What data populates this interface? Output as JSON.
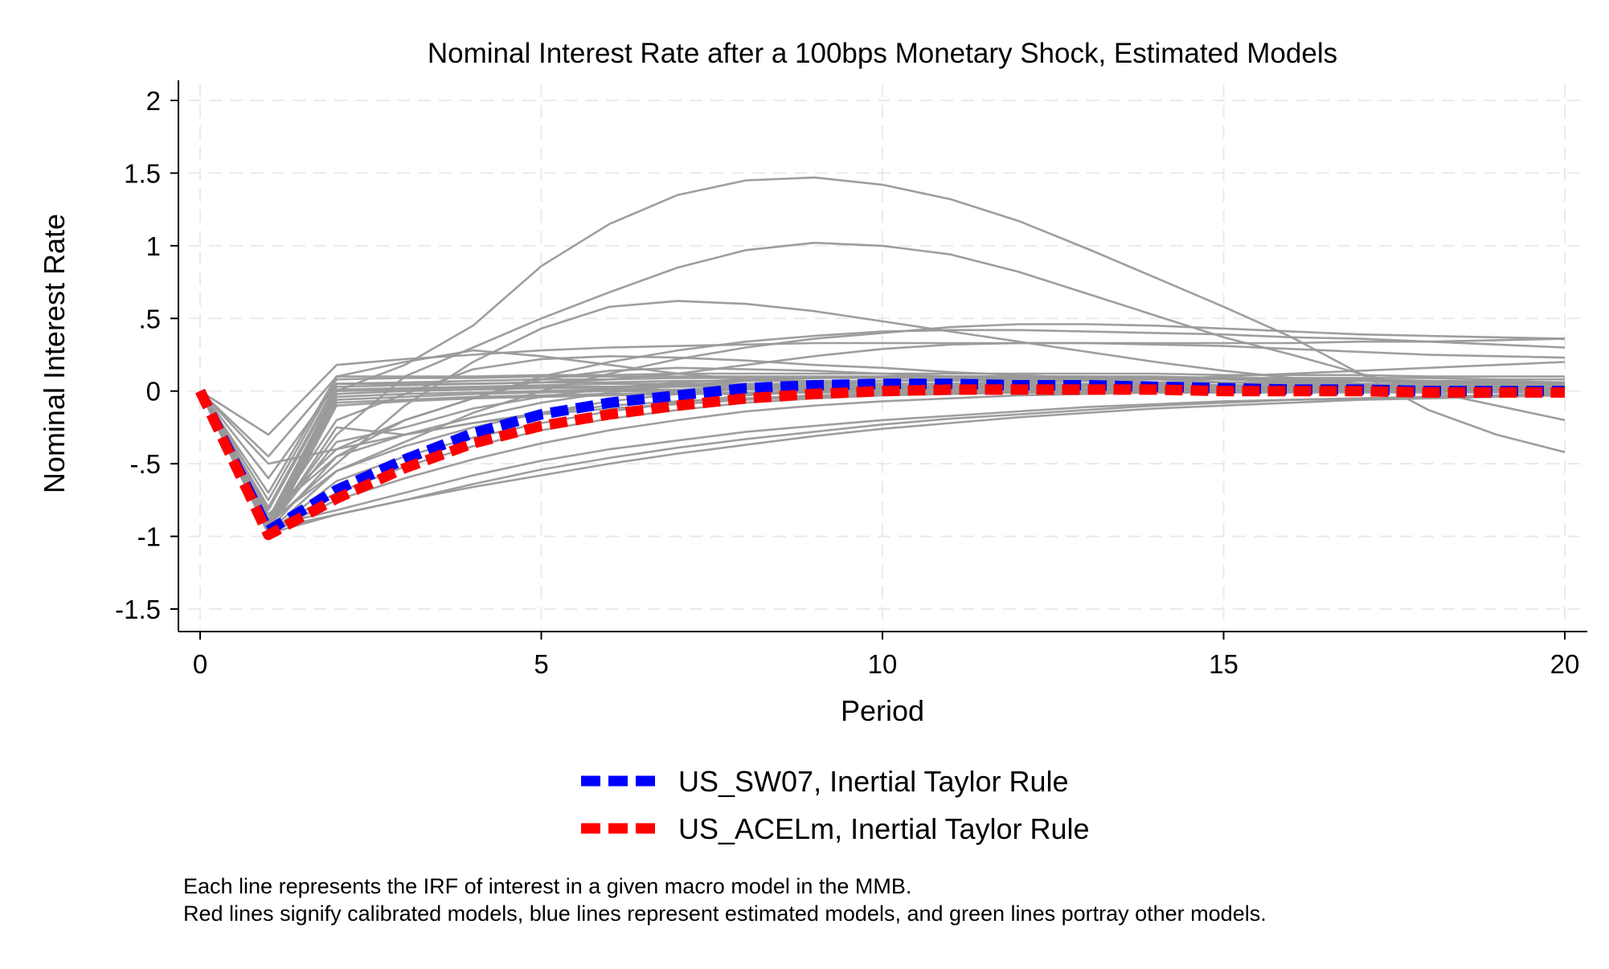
{
  "chart_data": {
    "type": "line",
    "title": "Nominal Interest Rate after a 100bps Monetary Shock, Estimated Models",
    "xlabel": "Period",
    "ylabel": "Nominal Interest Rate",
    "xlim": [
      0,
      20
    ],
    "ylim": [
      -1.5,
      2
    ],
    "x_ticks": [
      0,
      5,
      10,
      15,
      20
    ],
    "x_tick_labels": [
      "0",
      "5",
      "10",
      "15",
      "20"
    ],
    "y_ticks": [
      -1.5,
      -1,
      -0.5,
      0,
      0.5,
      1,
      1.5,
      2
    ],
    "y_tick_labels": [
      "-1.5",
      "-1",
      "-.5",
      "0",
      ".5",
      "1",
      "1.5",
      "2"
    ],
    "grid": true,
    "legend_position": "bottom",
    "x": [
      0,
      1,
      2,
      3,
      4,
      5,
      6,
      7,
      8,
      9,
      10,
      11,
      12,
      13,
      14,
      15,
      16,
      17,
      18,
      19,
      20
    ],
    "background_series_color": "#999999",
    "background_series": [
      [
        0,
        -0.95,
        0.0,
        0.18,
        0.45,
        0.86,
        1.15,
        1.35,
        1.45,
        1.47,
        1.42,
        1.32,
        1.17,
        0.98,
        0.78,
        0.58,
        0.37,
        0.12,
        -0.13,
        -0.3,
        -0.42
      ],
      [
        0,
        -0.93,
        -0.3,
        0.1,
        0.3,
        0.5,
        0.68,
        0.85,
        0.97,
        1.02,
        1.0,
        0.94,
        0.82,
        0.67,
        0.52,
        0.37,
        0.25,
        0.12,
        0.0,
        -0.1,
        -0.2
      ],
      [
        0,
        -0.92,
        -0.5,
        -0.1,
        0.2,
        0.43,
        0.58,
        0.62,
        0.6,
        0.55,
        0.48,
        0.41,
        0.34,
        0.27,
        0.2,
        0.14,
        0.09,
        0.05,
        0.02,
        0.0,
        -0.02
      ],
      [
        0,
        -0.3,
        0.18,
        0.22,
        0.25,
        0.28,
        0.3,
        0.31,
        0.32,
        0.33,
        0.33,
        0.33,
        0.33,
        0.33,
        0.33,
        0.33,
        0.33,
        0.34,
        0.34,
        0.35,
        0.36
      ],
      [
        0,
        -0.45,
        0.1,
        0.2,
        0.28,
        0.24,
        0.18,
        0.12,
        0.08,
        0.06,
        0.05,
        0.05,
        0.06,
        0.07,
        0.08,
        0.1,
        0.12,
        0.14,
        0.16,
        0.18,
        0.2
      ],
      [
        0,
        -0.6,
        0.05,
        0.05,
        0.05,
        0.06,
        0.08,
        0.12,
        0.18,
        0.24,
        0.29,
        0.32,
        0.33,
        0.33,
        0.32,
        0.31,
        0.29,
        0.27,
        0.25,
        0.24,
        0.23
      ],
      [
        0,
        -0.85,
        -0.4,
        -0.2,
        -0.05,
        0.1,
        0.2,
        0.28,
        0.34,
        0.38,
        0.41,
        0.42,
        0.42,
        0.41,
        0.4,
        0.39,
        0.37,
        0.36,
        0.34,
        0.32,
        0.3
      ],
      [
        0,
        -0.9,
        -0.55,
        -0.35,
        -0.15,
        0.0,
        0.12,
        0.22,
        0.3,
        0.36,
        0.4,
        0.44,
        0.46,
        0.46,
        0.45,
        0.43,
        0.41,
        0.39,
        0.38,
        0.37,
        0.36
      ],
      [
        0,
        -0.7,
        0.1,
        0.1,
        0.1,
        0.11,
        0.11,
        0.12,
        0.12,
        0.12,
        0.12,
        0.12,
        0.12,
        0.12,
        0.12,
        0.11,
        0.11,
        0.11,
        0.1,
        0.1,
        0.1
      ],
      [
        0,
        -0.75,
        0.08,
        0.09,
        0.09,
        0.1,
        0.1,
        0.1,
        0.1,
        0.1,
        0.1,
        0.1,
        0.1,
        0.1,
        0.1,
        0.09,
        0.09,
        0.09,
        0.09,
        0.08,
        0.08
      ],
      [
        0,
        -0.8,
        0.05,
        0.06,
        0.07,
        0.08,
        0.08,
        0.09,
        0.09,
        0.09,
        0.09,
        0.09,
        0.09,
        0.08,
        0.08,
        0.08,
        0.07,
        0.07,
        0.07,
        0.06,
        0.06
      ],
      [
        0,
        -0.82,
        0.03,
        0.04,
        0.05,
        0.06,
        0.06,
        0.07,
        0.07,
        0.07,
        0.07,
        0.07,
        0.07,
        0.07,
        0.06,
        0.06,
        0.06,
        0.05,
        0.05,
        0.05,
        0.05
      ],
      [
        0,
        -0.88,
        0.01,
        0.02,
        0.03,
        0.04,
        0.05,
        0.05,
        0.05,
        0.05,
        0.05,
        0.05,
        0.05,
        0.05,
        0.05,
        0.04,
        0.04,
        0.04,
        0.04,
        0.04,
        0.04
      ],
      [
        0,
        -0.9,
        0.0,
        0.01,
        0.02,
        0.03,
        0.03,
        0.04,
        0.04,
        0.04,
        0.04,
        0.04,
        0.04,
        0.04,
        0.03,
        0.03,
        0.03,
        0.03,
        0.03,
        0.03,
        0.03
      ],
      [
        0,
        -0.92,
        -0.02,
        0.0,
        0.01,
        0.02,
        0.02,
        0.03,
        0.03,
        0.03,
        0.03,
        0.03,
        0.03,
        0.03,
        0.02,
        0.02,
        0.02,
        0.02,
        0.02,
        0.02,
        0.02
      ],
      [
        0,
        -0.95,
        -0.04,
        -0.02,
        -0.01,
        0.0,
        0.01,
        0.01,
        0.02,
        0.02,
        0.02,
        0.02,
        0.02,
        0.02,
        0.02,
        0.01,
        0.01,
        0.01,
        0.01,
        0.01,
        0.01
      ],
      [
        0,
        -0.96,
        -0.06,
        -0.04,
        -0.02,
        -0.01,
        0.0,
        0.0,
        0.01,
        0.01,
        0.01,
        0.01,
        0.01,
        0.01,
        0.01,
        0.01,
        0.0,
        0.0,
        0.0,
        0.0,
        0.0
      ],
      [
        0,
        -0.97,
        -0.08,
        -0.06,
        -0.04,
        -0.03,
        -0.02,
        -0.01,
        -0.01,
        0.0,
        0.0,
        0.0,
        0.0,
        0.0,
        0.0,
        0.0,
        0.0,
        0.0,
        0.0,
        0.0,
        0.0
      ],
      [
        0,
        -0.98,
        -0.1,
        -0.07,
        -0.05,
        -0.04,
        -0.03,
        -0.02,
        -0.02,
        -0.01,
        -0.01,
        -0.01,
        -0.01,
        -0.01,
        -0.01,
        -0.01,
        -0.01,
        -0.01,
        -0.01,
        -0.01,
        -0.01
      ],
      [
        0,
        -0.95,
        -0.25,
        -0.3,
        -0.22,
        -0.15,
        -0.1,
        -0.07,
        -0.05,
        -0.03,
        -0.02,
        -0.02,
        -0.01,
        -0.01,
        -0.01,
        -0.01,
        0.0,
        0.0,
        0.0,
        0.0,
        0.0
      ],
      [
        0,
        -0.94,
        -0.35,
        -0.25,
        -0.12,
        -0.04,
        0.02,
        0.06,
        0.08,
        0.09,
        0.1,
        0.1,
        0.1,
        0.09,
        0.09,
        0.08,
        0.07,
        0.07,
        0.06,
        0.06,
        0.05
      ],
      [
        0,
        -0.96,
        -0.45,
        -0.3,
        -0.18,
        -0.08,
        -0.01,
        0.04,
        0.07,
        0.09,
        0.1,
        0.1,
        0.1,
        0.1,
        0.09,
        0.09,
        0.08,
        0.08,
        0.07,
        0.07,
        0.06
      ],
      [
        0,
        -0.97,
        -0.55,
        -0.38,
        -0.25,
        -0.15,
        -0.07,
        -0.02,
        0.02,
        0.05,
        0.07,
        0.08,
        0.08,
        0.08,
        0.08,
        0.08,
        0.07,
        0.07,
        0.06,
        0.06,
        0.05
      ],
      [
        0,
        -0.98,
        -0.62,
        -0.45,
        -0.32,
        -0.22,
        -0.14,
        -0.08,
        -0.03,
        0.0,
        0.02,
        0.03,
        0.04,
        0.04,
        0.04,
        0.04,
        0.04,
        0.04,
        0.03,
        0.03,
        0.03
      ],
      [
        0,
        -0.96,
        -0.7,
        -0.52,
        -0.38,
        -0.27,
        -0.19,
        -0.13,
        -0.08,
        -0.05,
        -0.03,
        -0.01,
        0.0,
        0.01,
        0.01,
        0.01,
        0.01,
        0.01,
        0.01,
        0.01,
        0.01
      ],
      [
        0,
        -0.97,
        -0.75,
        -0.6,
        -0.47,
        -0.36,
        -0.27,
        -0.2,
        -0.14,
        -0.1,
        -0.07,
        -0.05,
        -0.03,
        -0.02,
        -0.01,
        -0.01,
        0.0,
        0.0,
        0.0,
        0.0,
        0.0
      ],
      [
        0,
        -0.98,
        -0.85,
        -0.75,
        -0.66,
        -0.58,
        -0.5,
        -0.43,
        -0.37,
        -0.31,
        -0.26,
        -0.22,
        -0.18,
        -0.15,
        -0.12,
        -0.1,
        -0.08,
        -0.06,
        -0.05,
        -0.04,
        -0.03
      ],
      [
        0,
        -0.95,
        -0.85,
        -0.75,
        -0.64,
        -0.54,
        -0.46,
        -0.39,
        -0.33,
        -0.28,
        -0.23,
        -0.19,
        -0.16,
        -0.13,
        -0.1,
        -0.08,
        -0.06,
        -0.05,
        -0.04,
        -0.03,
        -0.02
      ],
      [
        0,
        -0.93,
        -0.82,
        -0.7,
        -0.58,
        -0.48,
        -0.4,
        -0.34,
        -0.28,
        -0.24,
        -0.2,
        -0.17,
        -0.14,
        -0.11,
        -0.09,
        -0.07,
        -0.06,
        -0.05,
        -0.04,
        -0.03,
        -0.02
      ],
      [
        0,
        -0.5,
        -0.4,
        -0.3,
        -0.22,
        -0.16,
        -0.12,
        -0.09,
        -0.06,
        -0.04,
        -0.03,
        -0.02,
        -0.01,
        -0.01,
        0.0,
        0.0,
        0.0,
        0.0,
        0.0,
        0.0,
        0.0
      ],
      [
        0,
        -0.85,
        -0.45,
        -0.2,
        -0.05,
        0.08,
        0.14,
        0.16,
        0.15,
        0.14,
        0.12,
        0.1,
        0.08,
        0.07,
        0.05,
        0.04,
        0.03,
        0.03,
        0.02,
        0.02,
        0.01
      ],
      [
        0,
        -0.9,
        -0.2,
        -0.02,
        0.15,
        0.22,
        0.24,
        0.23,
        0.21,
        0.18,
        0.16,
        0.13,
        0.11,
        0.09,
        0.08,
        0.06,
        0.05,
        0.04,
        0.04,
        0.03,
        0.03
      ]
    ],
    "series": [
      {
        "name": "US_SW07, Inertial Taylor Rule",
        "color": "#0000ff",
        "values": [
          0,
          -0.96,
          -0.68,
          -0.47,
          -0.29,
          -0.16,
          -0.08,
          -0.03,
          0.02,
          0.04,
          0.05,
          0.05,
          0.04,
          0.04,
          0.03,
          0.02,
          0.01,
          0.01,
          0.0,
          0.0,
          0.0
        ]
      },
      {
        "name": "US_ACELm, Inertial Taylor Rule",
        "color": "#ff0000",
        "values": [
          0,
          -0.99,
          -0.74,
          -0.53,
          -0.36,
          -0.24,
          -0.16,
          -0.1,
          -0.05,
          -0.02,
          0.0,
          0.01,
          0.01,
          0.01,
          0.01,
          0.0,
          0.0,
          0.0,
          -0.01,
          -0.01,
          -0.01
        ]
      }
    ],
    "note_lines": [
      "Each line represents the IRF of interest in a given macro model in the MMB.",
      "Red lines signify calibrated models, blue lines represent estimated models, and green lines portray other models."
    ]
  }
}
